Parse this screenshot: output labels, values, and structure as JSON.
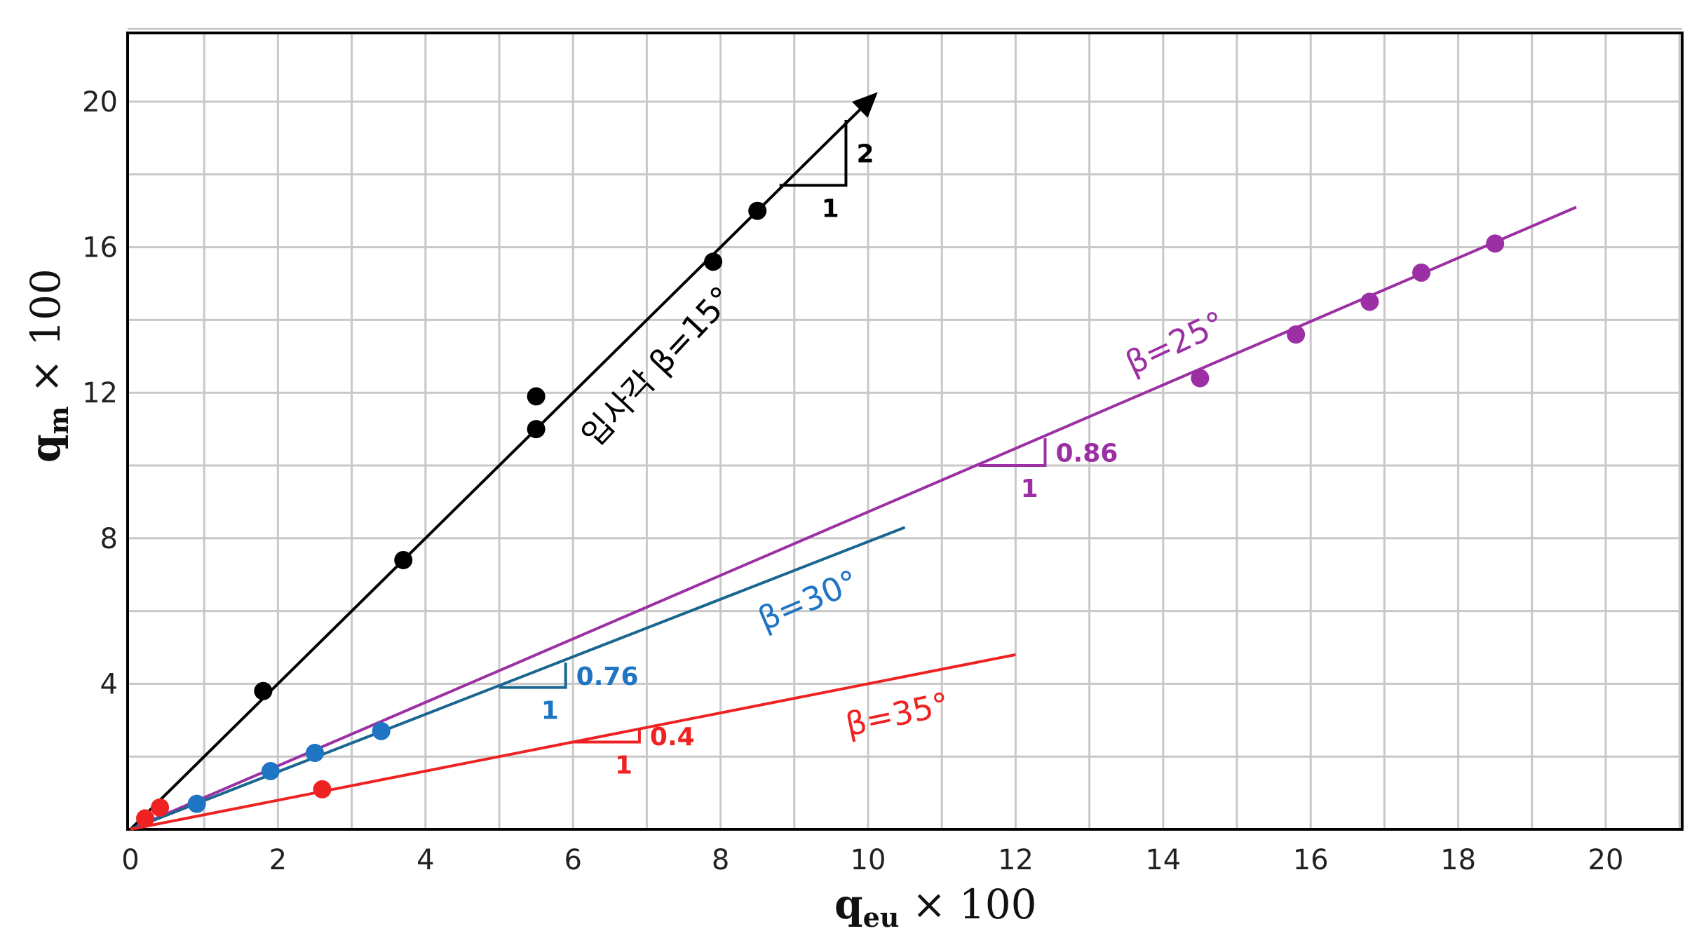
{
  "chart_data": {
    "type": "scatter",
    "xlabel": {
      "main": "q",
      "sub": "eu",
      "suffix": " × 100"
    },
    "ylabel": {
      "main": "q",
      "sub": "m",
      "suffix": " × 100"
    },
    "xlim": [
      0,
      21
    ],
    "ylim": [
      0,
      22
    ],
    "xticks": [
      "0",
      "2",
      "4",
      "6",
      "8",
      "10",
      "12",
      "14",
      "16",
      "18",
      "20"
    ],
    "yticks": [
      "4",
      "8",
      "12",
      "16",
      "20"
    ],
    "grid": true,
    "series": [
      {
        "name": "입사각  β=15°",
        "color": "#000000",
        "line_end": [
          10.05,
          20.1
        ],
        "arrow": true,
        "points": [
          [
            1.8,
            3.8
          ],
          [
            3.7,
            7.4
          ],
          [
            5.5,
            11.0
          ],
          [
            5.5,
            11.9
          ],
          [
            7.9,
            15.6
          ],
          [
            8.5,
            17.0
          ]
        ],
        "slope": {
          "run": "1",
          "rise": "2",
          "at": [
            8.8,
            17.7
          ],
          "dx": 0.9,
          "dy": 1.8
        }
      },
      {
        "name": "β=25°",
        "color": "#9b2fa3",
        "line_end": [
          19.6,
          17.1
        ],
        "points": [
          [
            14.5,
            12.4
          ],
          [
            15.8,
            13.6
          ],
          [
            16.8,
            14.5
          ],
          [
            17.5,
            15.3
          ],
          [
            18.5,
            16.1
          ]
        ],
        "slope": {
          "run": "1",
          "rise": "0.86",
          "at": [
            11.5,
            10.0
          ],
          "dx": 0.9,
          "dy": 0.75
        }
      },
      {
        "name": "β=30°",
        "color": "#1f74c4",
        "line_color": "#1a6690",
        "line_end": [
          10.5,
          8.3
        ],
        "points": [
          [
            0.9,
            0.7
          ],
          [
            1.9,
            1.6
          ],
          [
            2.5,
            2.1
          ],
          [
            3.4,
            2.7
          ]
        ],
        "slope": {
          "run": "1",
          "rise": "0.76",
          "at": [
            5.0,
            3.9
          ],
          "dx": 0.9,
          "dy": 0.68
        }
      },
      {
        "name": "β=35°",
        "color": "#ee2222",
        "line_end": [
          12.0,
          4.8
        ],
        "points": [
          [
            0.2,
            0.3
          ],
          [
            0.4,
            0.6
          ],
          [
            2.6,
            1.1
          ]
        ],
        "slope": {
          "run": "1",
          "rise": "0.4",
          "at": [
            6.0,
            2.4
          ],
          "dx": 0.9,
          "dy": 0.36
        }
      }
    ]
  }
}
